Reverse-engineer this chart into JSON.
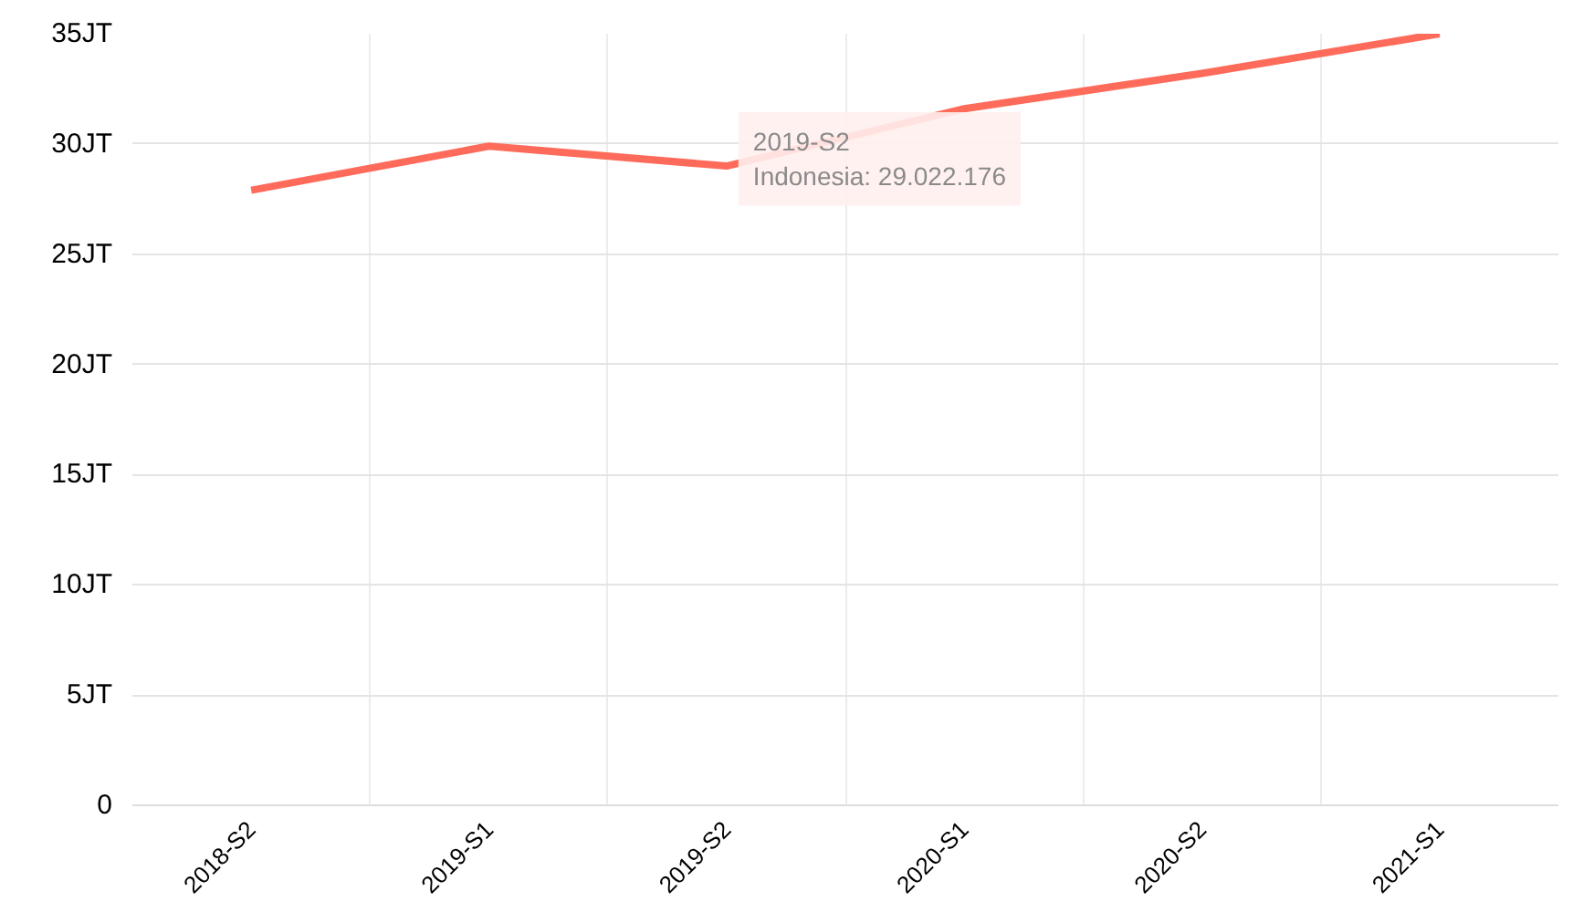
{
  "chart_data": {
    "type": "line",
    "categories": [
      "2018-S2",
      "2019-S1",
      "2019-S2",
      "2020-S1",
      "2020-S2",
      "2021-S1"
    ],
    "series": [
      {
        "color": "#fe6b5b",
        "values": [
          27.9,
          29.9,
          29.0,
          31.6,
          33.2,
          35.0
        ]
      }
    ],
    "ylim": [
      0,
      35
    ],
    "yticks": [
      0,
      {
        "value": 5,
        "label": "5JT"
      },
      {
        "value": 10,
        "label": "10JT"
      },
      {
        "value": 15,
        "label": "15JT"
      },
      {
        "value": 20,
        "label": "20JT"
      },
      {
        "value": 25,
        "label": "25JT"
      },
      {
        "value": 30,
        "label": "30JT"
      },
      {
        "value": 35,
        "label": "35JT"
      }
    ],
    "grid": true,
    "marker": "none",
    "line_style": "solid",
    "annotations": [
      {
        "text": "2019-S2\nIndonesia: 29.022.176",
        "x": "2019-S2",
        "y": 29.022176
      }
    ]
  }
}
